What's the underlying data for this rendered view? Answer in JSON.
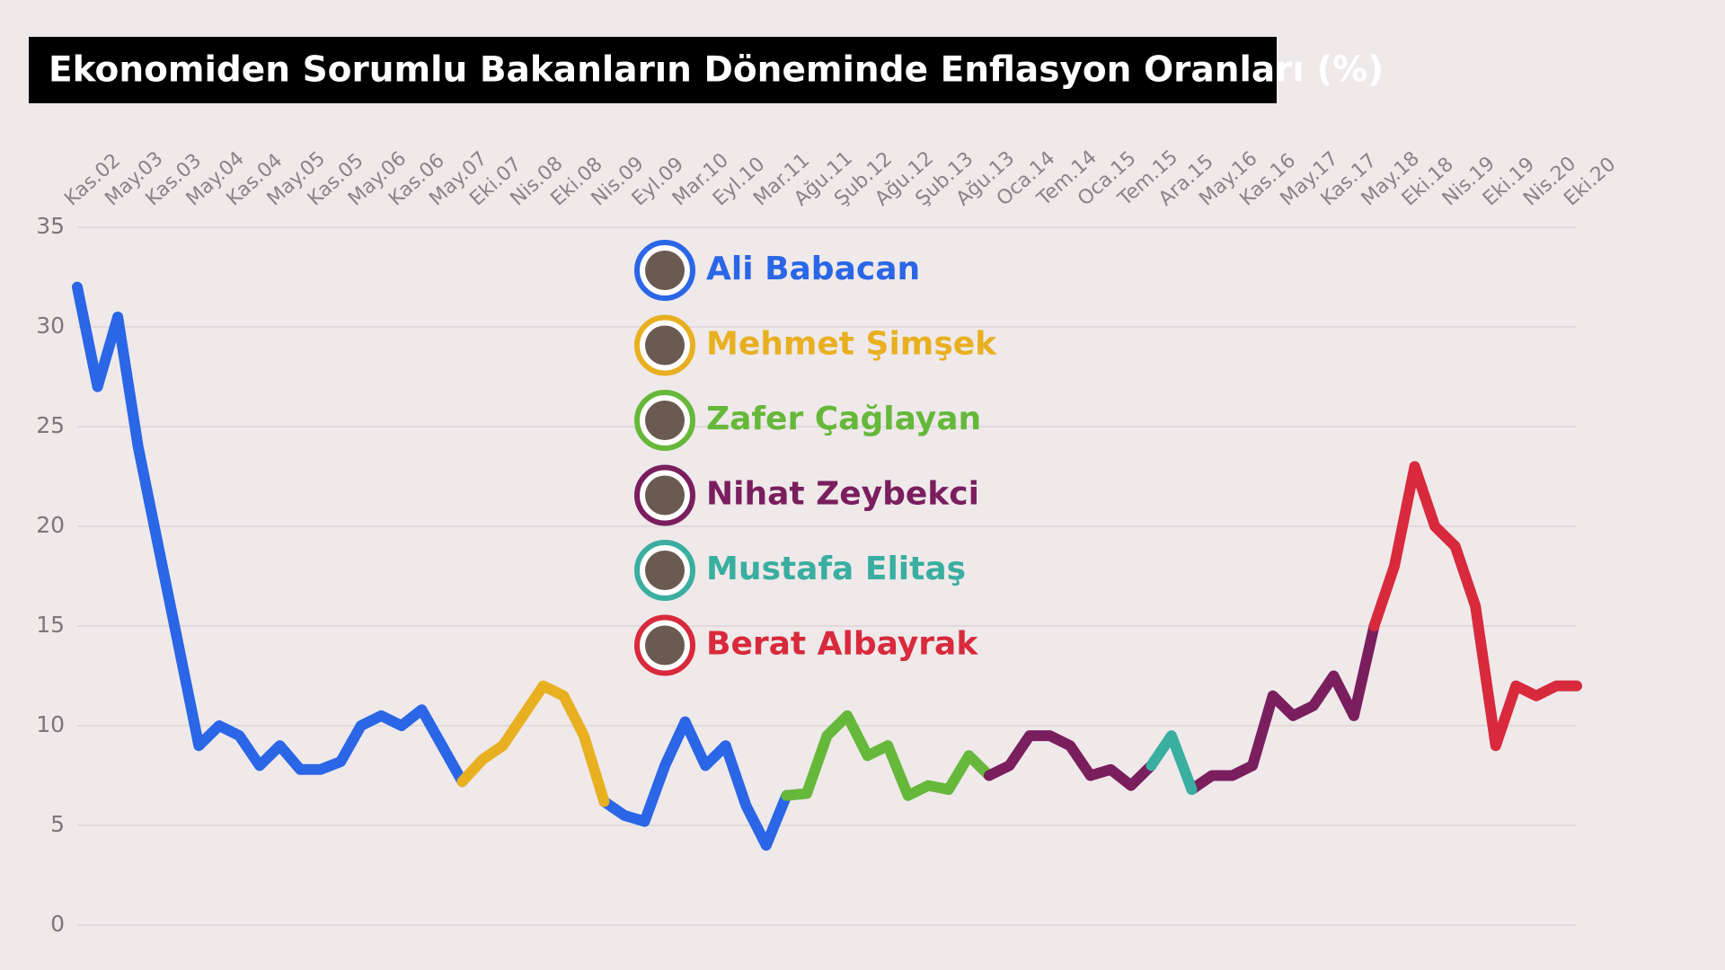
{
  "chart_data": {
    "type": "line",
    "title": "Ekonomiden Sorumlu Bakanların Döneminde Enflasyon Oranları (%)",
    "categories": [
      "Kas.02",
      null,
      "May.03",
      null,
      "Kas.03",
      null,
      "May.04",
      null,
      "Kas.04",
      null,
      "May.05",
      null,
      "Kas.05",
      null,
      "May.06",
      null,
      "Kas.06",
      null,
      "May.07",
      null,
      "Eki.07",
      null,
      "Nis.08",
      null,
      "Eki.08",
      null,
      "Nis.09",
      null,
      "Eyl.09",
      null,
      "Mar.10",
      null,
      "Eyl.10",
      null,
      "Mar.11",
      null,
      "Ağu.11",
      null,
      "Şub.12",
      null,
      "Ağu.12",
      null,
      "Şub.13",
      null,
      "Ağu.13",
      null,
      "Oca.14",
      null,
      "Tem.14",
      null,
      "Oca.15",
      null,
      "Tem.15",
      null,
      "Ara.15",
      null,
      "May.16",
      null,
      "Kas.16",
      null,
      "May.17",
      null,
      "Kas.17",
      null,
      "May.18",
      null,
      "Eki.18",
      null,
      "Nis.19",
      null,
      "Eki.19",
      null,
      "Nis.20",
      null,
      "Eki.20"
    ],
    "series": [
      {
        "name": "Ali Babacan",
        "color": "#2a66e6",
        "values": [
          32,
          27,
          30.5,
          24,
          19,
          14,
          9,
          10,
          9.5,
          8,
          9,
          7.8,
          7.8,
          8.2,
          10,
          10.5,
          10,
          10.8,
          9,
          7.2,
          null,
          null,
          null,
          null,
          null,
          null,
          6.2,
          5.5,
          5.2,
          8,
          10.2,
          8,
          9,
          6,
          4,
          6.5,
          null,
          null,
          null,
          null,
          null,
          null,
          null,
          null,
          null,
          null,
          null,
          null,
          null,
          null,
          null,
          null,
          null,
          null,
          null,
          null,
          null,
          null,
          null,
          null,
          null,
          null,
          null,
          null,
          null,
          null,
          null,
          null,
          null,
          null,
          null,
          null,
          null,
          null,
          null
        ]
      },
      {
        "name": "Mehmet Şimşek",
        "color": "#e8b020",
        "values": [
          null,
          null,
          null,
          null,
          null,
          null,
          null,
          null,
          null,
          null,
          null,
          null,
          null,
          null,
          null,
          null,
          null,
          null,
          null,
          7.2,
          8.3,
          9,
          10.5,
          12,
          11.5,
          9.5,
          6.2,
          null,
          null,
          null,
          null,
          null,
          null,
          null,
          null,
          null,
          null,
          null,
          null,
          null,
          null,
          null,
          null,
          null,
          null,
          null,
          null,
          null,
          null,
          null,
          null,
          null,
          null,
          null,
          null,
          null,
          null,
          null,
          null,
          null,
          null,
          null,
          null,
          null,
          null,
          null,
          null,
          null,
          null,
          null,
          null,
          null,
          null,
          null,
          null
        ]
      },
      {
        "name": "Zafer Çağlayan",
        "color": "#66b83a",
        "values": [
          null,
          null,
          null,
          null,
          null,
          null,
          null,
          null,
          null,
          null,
          null,
          null,
          null,
          null,
          null,
          null,
          null,
          null,
          null,
          null,
          null,
          null,
          null,
          null,
          null,
          null,
          null,
          null,
          null,
          null,
          null,
          null,
          null,
          null,
          null,
          6.5,
          6.6,
          9.5,
          10.5,
          8.5,
          9,
          6.5,
          7,
          6.8,
          8.5,
          7.5,
          null,
          null,
          null,
          null,
          null,
          null,
          null,
          null,
          null,
          null,
          null,
          null,
          null,
          null,
          null,
          null,
          null,
          null,
          null,
          null,
          null,
          null,
          null,
          null,
          null,
          null,
          null,
          null,
          null
        ]
      },
      {
        "name": "Nihat Zeybekci",
        "color": "#7a1e5e",
        "values": [
          null,
          null,
          null,
          null,
          null,
          null,
          null,
          null,
          null,
          null,
          null,
          null,
          null,
          null,
          null,
          null,
          null,
          null,
          null,
          null,
          null,
          null,
          null,
          null,
          null,
          null,
          null,
          null,
          null,
          null,
          null,
          null,
          null,
          null,
          null,
          null,
          null,
          null,
          null,
          null,
          null,
          null,
          null,
          null,
          null,
          7.5,
          8,
          9.5,
          9.5,
          9,
          7.5,
          7.8,
          7,
          8,
          null,
          6.8,
          7.5,
          7.5,
          8,
          11.5,
          10.5,
          11,
          12.5,
          10.5,
          15,
          null,
          null,
          null,
          null,
          null,
          null,
          null,
          null,
          null,
          null
        ]
      },
      {
        "name": "Mustafa Elitaş",
        "color": "#3aaea0",
        "values": [
          null,
          null,
          null,
          null,
          null,
          null,
          null,
          null,
          null,
          null,
          null,
          null,
          null,
          null,
          null,
          null,
          null,
          null,
          null,
          null,
          null,
          null,
          null,
          null,
          null,
          null,
          null,
          null,
          null,
          null,
          null,
          null,
          null,
          null,
          null,
          null,
          null,
          null,
          null,
          null,
          null,
          null,
          null,
          null,
          null,
          null,
          null,
          null,
          null,
          null,
          null,
          null,
          null,
          8,
          9.5,
          6.8,
          null,
          null,
          null,
          null,
          null,
          null,
          null,
          null,
          null,
          null,
          null,
          null,
          null,
          null,
          null,
          null,
          null,
          null,
          null
        ]
      },
      {
        "name": "Berat Albayrak",
        "color": "#d82a3c",
        "values": [
          null,
          null,
          null,
          null,
          null,
          null,
          null,
          null,
          null,
          null,
          null,
          null,
          null,
          null,
          null,
          null,
          null,
          null,
          null,
          null,
          null,
          null,
          null,
          null,
          null,
          null,
          null,
          null,
          null,
          null,
          null,
          null,
          null,
          null,
          null,
          null,
          null,
          null,
          null,
          null,
          null,
          null,
          null,
          null,
          null,
          null,
          null,
          null,
          null,
          null,
          null,
          null,
          null,
          null,
          null,
          null,
          null,
          null,
          null,
          null,
          null,
          null,
          null,
          null,
          15,
          18,
          23,
          20,
          19,
          16,
          9,
          12,
          11.5,
          12,
          12
        ]
      }
    ],
    "ylim": [
      0,
      35
    ],
    "yticks": [
      0,
      5,
      10,
      15,
      20,
      25,
      30,
      35
    ],
    "grid": true
  }
}
